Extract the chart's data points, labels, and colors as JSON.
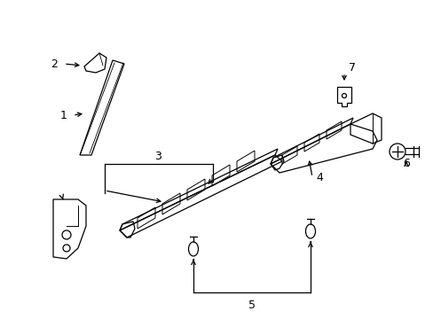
{
  "bg_color": "#ffffff",
  "line_color": "#000000",
  "lw": 0.9,
  "fs": 9,
  "fig_w": 4.89,
  "fig_h": 3.6,
  "dpi": 100
}
